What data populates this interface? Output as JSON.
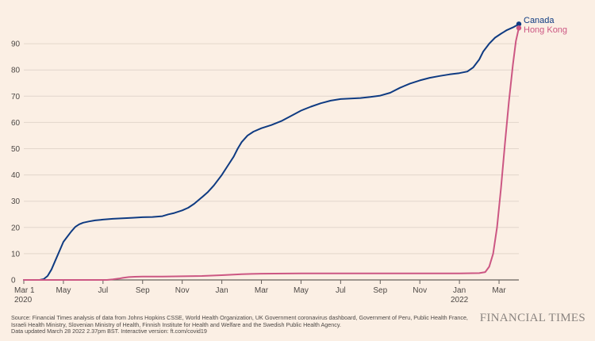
{
  "chart_data": {
    "type": "line",
    "title": "",
    "xlabel": "",
    "ylabel": "",
    "ylim": [
      0,
      100
    ],
    "yticks": [
      0,
      10,
      20,
      30,
      40,
      50,
      60,
      70,
      80,
      90
    ],
    "xlim": [
      0,
      25
    ],
    "x_unit": "months since Mar 1 2020",
    "xticks": [
      {
        "x": 0,
        "label": "Mar 1",
        "sublabel": "2020"
      },
      {
        "x": 2,
        "label": "May"
      },
      {
        "x": 4,
        "label": "Jul"
      },
      {
        "x": 6,
        "label": "Sep"
      },
      {
        "x": 8,
        "label": "Nov"
      },
      {
        "x": 10,
        "label": "Jan"
      },
      {
        "x": 12,
        "label": "Mar"
      },
      {
        "x": 14,
        "label": "May"
      },
      {
        "x": 16,
        "label": "Jul"
      },
      {
        "x": 18,
        "label": "Sep"
      },
      {
        "x": 20,
        "label": "Nov"
      },
      {
        "x": 22,
        "label": "Jan",
        "sublabel": "2022"
      },
      {
        "x": 24,
        "label": "Mar"
      }
    ],
    "grid": true,
    "series": [
      {
        "name": "Canada",
        "color": "#0f3b82",
        "points": [
          [
            0,
            0
          ],
          [
            0.8,
            0
          ],
          [
            1.0,
            0.3
          ],
          [
            1.2,
            1.5
          ],
          [
            1.4,
            4
          ],
          [
            1.6,
            7.5
          ],
          [
            1.8,
            11
          ],
          [
            2.0,
            14.5
          ],
          [
            2.2,
            16.5
          ],
          [
            2.4,
            18.5
          ],
          [
            2.6,
            20.2
          ],
          [
            2.8,
            21.2
          ],
          [
            3.0,
            21.8
          ],
          [
            3.3,
            22.3
          ],
          [
            3.6,
            22.7
          ],
          [
            4.0,
            23.0
          ],
          [
            4.5,
            23.3
          ],
          [
            5.0,
            23.5
          ],
          [
            5.5,
            23.7
          ],
          [
            6.0,
            23.9
          ],
          [
            6.5,
            24.0
          ],
          [
            7.0,
            24.3
          ],
          [
            7.3,
            25.0
          ],
          [
            7.6,
            25.5
          ],
          [
            8.0,
            26.5
          ],
          [
            8.3,
            27.5
          ],
          [
            8.6,
            29.0
          ],
          [
            9.0,
            31.5
          ],
          [
            9.3,
            33.5
          ],
          [
            9.6,
            36.0
          ],
          [
            10.0,
            40.0
          ],
          [
            10.3,
            43.5
          ],
          [
            10.6,
            47.0
          ],
          [
            10.8,
            50.0
          ],
          [
            11.0,
            52.5
          ],
          [
            11.3,
            55.0
          ],
          [
            11.6,
            56.5
          ],
          [
            12.0,
            57.8
          ],
          [
            12.5,
            59.0
          ],
          [
            13.0,
            60.5
          ],
          [
            13.5,
            62.5
          ],
          [
            14.0,
            64.5
          ],
          [
            14.5,
            66.0
          ],
          [
            15.0,
            67.3
          ],
          [
            15.5,
            68.3
          ],
          [
            16.0,
            68.9
          ],
          [
            16.5,
            69.1
          ],
          [
            17.0,
            69.3
          ],
          [
            17.5,
            69.7
          ],
          [
            18.0,
            70.2
          ],
          [
            18.5,
            71.3
          ],
          [
            19.0,
            73.2
          ],
          [
            19.5,
            74.8
          ],
          [
            20.0,
            76.0
          ],
          [
            20.5,
            77.0
          ],
          [
            21.0,
            77.7
          ],
          [
            21.5,
            78.3
          ],
          [
            22.0,
            78.8
          ],
          [
            22.4,
            79.4
          ],
          [
            22.7,
            81.0
          ],
          [
            23.0,
            84.0
          ],
          [
            23.2,
            87.0
          ],
          [
            23.5,
            90.0
          ],
          [
            23.8,
            92.3
          ],
          [
            24.1,
            93.8
          ],
          [
            24.4,
            95.2
          ],
          [
            24.7,
            96.2
          ],
          [
            24.9,
            97.0
          ],
          [
            25.0,
            97.5
          ]
        ]
      },
      {
        "name": "Hong Kong",
        "color": "#cc5783",
        "points": [
          [
            0,
            0
          ],
          [
            4.2,
            0
          ],
          [
            4.5,
            0.2
          ],
          [
            4.8,
            0.5
          ],
          [
            5.0,
            0.8
          ],
          [
            5.3,
            1.1
          ],
          [
            5.6,
            1.2
          ],
          [
            6.0,
            1.3
          ],
          [
            7.0,
            1.3
          ],
          [
            8.0,
            1.4
          ],
          [
            9.0,
            1.5
          ],
          [
            10.0,
            1.8
          ],
          [
            10.5,
            2.0
          ],
          [
            11.0,
            2.2
          ],
          [
            11.5,
            2.3
          ],
          [
            12.0,
            2.4
          ],
          [
            14.0,
            2.5
          ],
          [
            16.0,
            2.5
          ],
          [
            18.0,
            2.5
          ],
          [
            20.0,
            2.5
          ],
          [
            22.0,
            2.5
          ],
          [
            23.0,
            2.6
          ],
          [
            23.3,
            3.0
          ],
          [
            23.5,
            5.0
          ],
          [
            23.7,
            10.0
          ],
          [
            23.9,
            20.0
          ],
          [
            24.1,
            35.0
          ],
          [
            24.3,
            52.0
          ],
          [
            24.5,
            68.0
          ],
          [
            24.7,
            82.0
          ],
          [
            24.85,
            91.0
          ],
          [
            25.0,
            96.0
          ]
        ]
      }
    ],
    "legend": "end-of-line labels at top-right"
  },
  "footer": {
    "source_line1": "Source: Financial Times analysis of data from Johns Hopkins CSSE, World Health Organization, UK Government coronavirus dashboard, Government of Peru, Public Health France,",
    "source_line2": "Israeli Health Ministry, Slovenian Ministry of Health, Finnish Institute for Health and Welfare and the Swedish Public Health Agency.",
    "updated": "Data updated March 28 2022 2.37pm BST. Interactive version: ft.com/covid19",
    "brand": "FINANCIAL TIMES"
  }
}
